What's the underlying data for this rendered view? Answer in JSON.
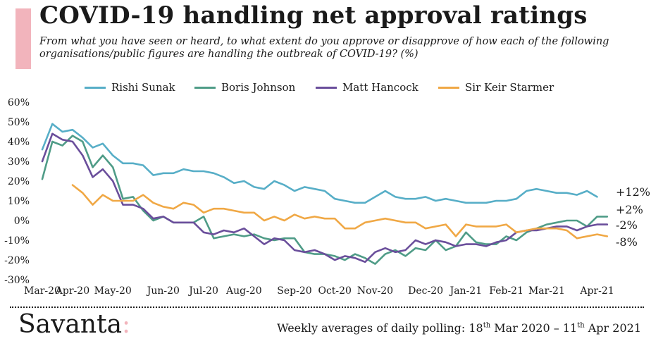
{
  "title": "COVID-19 handling net approval ratings",
  "subtitle": "From what you have seen or heard, to what extent do you approve or disapprove of how each of the following organisations/public figures are handling the outbreak of COVID-19? (%)",
  "brand": {
    "name": "Savanta",
    "colon": ":"
  },
  "footer": {
    "prefix": "Weekly averages of daily polling: 18",
    "sup1": "th",
    "middle": " Mar 2020 – 11",
    "sup2": "th",
    "suffix": " Apr 2021"
  },
  "colors": {
    "accent": "#f2b4bc"
  },
  "chart_data": {
    "type": "line",
    "ylim": [
      -30,
      60
    ],
    "y_ticks": [
      -30,
      -20,
      -10,
      0,
      10,
      20,
      30,
      40,
      50,
      60
    ],
    "y_tick_labels": [
      "-30%",
      "-20%",
      "-10%",
      "0%",
      "10%",
      "20%",
      "30%",
      "40%",
      "50%",
      "60%"
    ],
    "x_range": [
      "2020-03-18",
      "2021-04-18"
    ],
    "x_ticks": [
      "2020-03-18",
      "2020-04-08",
      "2020-05-06",
      "2020-06-10",
      "2020-07-08",
      "2020-08-05",
      "2020-09-09",
      "2020-10-07",
      "2020-11-04",
      "2020-12-09",
      "2021-01-06",
      "2021-02-03",
      "2021-03-03",
      "2021-04-07"
    ],
    "x_tick_labels": [
      "Mar-20",
      "Apr-20",
      "May-20",
      "Jun-20",
      "Jul-20",
      "Aug-20",
      "Sep-20",
      "Oct-20",
      "Nov-20",
      "Dec-20",
      "Jan-21",
      "Feb-21",
      "Mar-21",
      "Apr-21"
    ],
    "legend_position": "top",
    "grid": false,
    "series": [
      {
        "name": "Rishi Sunak",
        "color": "#57aec7",
        "end_label": "+12%",
        "points": [
          [
            "2020-03-18",
            36
          ],
          [
            "2020-03-25",
            49
          ],
          [
            "2020-04-01",
            45
          ],
          [
            "2020-04-08",
            46
          ],
          [
            "2020-04-15",
            42
          ],
          [
            "2020-04-22",
            37
          ],
          [
            "2020-04-29",
            39
          ],
          [
            "2020-05-06",
            33
          ],
          [
            "2020-05-13",
            29
          ],
          [
            "2020-05-20",
            29
          ],
          [
            "2020-05-27",
            28
          ],
          [
            "2020-06-03",
            23
          ],
          [
            "2020-06-10",
            24
          ],
          [
            "2020-06-17",
            24
          ],
          [
            "2020-06-24",
            26
          ],
          [
            "2020-07-01",
            25
          ],
          [
            "2020-07-08",
            25
          ],
          [
            "2020-07-15",
            24
          ],
          [
            "2020-07-22",
            22
          ],
          [
            "2020-07-29",
            19
          ],
          [
            "2020-08-05",
            20
          ],
          [
            "2020-08-12",
            17
          ],
          [
            "2020-08-19",
            16
          ],
          [
            "2020-08-26",
            20
          ],
          [
            "2020-09-02",
            18
          ],
          [
            "2020-09-09",
            15
          ],
          [
            "2020-09-16",
            17
          ],
          [
            "2020-09-23",
            16
          ],
          [
            "2020-09-30",
            15
          ],
          [
            "2020-10-07",
            11
          ],
          [
            "2020-10-14",
            10
          ],
          [
            "2020-10-21",
            9
          ],
          [
            "2020-10-28",
            9
          ],
          [
            "2020-11-04",
            12
          ],
          [
            "2020-11-11",
            15
          ],
          [
            "2020-11-18",
            12
          ],
          [
            "2020-11-25",
            11
          ],
          [
            "2020-12-02",
            11
          ],
          [
            "2020-12-09",
            12
          ],
          [
            "2020-12-16",
            10
          ],
          [
            "2020-12-23",
            11
          ],
          [
            "2020-12-30",
            10
          ],
          [
            "2021-01-06",
            9
          ],
          [
            "2021-01-13",
            9
          ],
          [
            "2021-01-20",
            9
          ],
          [
            "2021-01-27",
            10
          ],
          [
            "2021-02-03",
            10
          ],
          [
            "2021-02-10",
            11
          ],
          [
            "2021-02-17",
            15
          ],
          [
            "2021-02-24",
            16
          ],
          [
            "2021-03-03",
            15
          ],
          [
            "2021-03-10",
            14
          ],
          [
            "2021-03-17",
            14
          ],
          [
            "2021-03-24",
            13
          ],
          [
            "2021-03-31",
            15
          ],
          [
            "2021-04-07",
            12
          ]
        ]
      },
      {
        "name": "Boris Johnson",
        "color": "#4f9c87",
        "end_label": "+2%",
        "points": [
          [
            "2020-03-18",
            21
          ],
          [
            "2020-03-25",
            40
          ],
          [
            "2020-04-01",
            38
          ],
          [
            "2020-04-08",
            43
          ],
          [
            "2020-04-15",
            40
          ],
          [
            "2020-04-22",
            27
          ],
          [
            "2020-04-29",
            33
          ],
          [
            "2020-05-06",
            27
          ],
          [
            "2020-05-13",
            11
          ],
          [
            "2020-05-20",
            12
          ],
          [
            "2020-05-27",
            5
          ],
          [
            "2020-06-03",
            0
          ],
          [
            "2020-06-10",
            2
          ],
          [
            "2020-06-17",
            -1
          ],
          [
            "2020-06-24",
            -1
          ],
          [
            "2020-07-01",
            -1
          ],
          [
            "2020-07-08",
            2
          ],
          [
            "2020-07-15",
            -9
          ],
          [
            "2020-07-22",
            -8
          ],
          [
            "2020-07-29",
            -7
          ],
          [
            "2020-08-05",
            -8
          ],
          [
            "2020-08-12",
            -7
          ],
          [
            "2020-08-19",
            -9
          ],
          [
            "2020-08-26",
            -10
          ],
          [
            "2020-09-02",
            -9
          ],
          [
            "2020-09-09",
            -9
          ],
          [
            "2020-09-16",
            -16
          ],
          [
            "2020-09-23",
            -17
          ],
          [
            "2020-09-30",
            -17
          ],
          [
            "2020-10-07",
            -18
          ],
          [
            "2020-10-14",
            -20
          ],
          [
            "2020-10-21",
            -17
          ],
          [
            "2020-10-28",
            -19
          ],
          [
            "2020-11-04",
            -22
          ],
          [
            "2020-11-11",
            -17
          ],
          [
            "2020-11-18",
            -15
          ],
          [
            "2020-11-25",
            -18
          ],
          [
            "2020-12-02",
            -14
          ],
          [
            "2020-12-09",
            -15
          ],
          [
            "2020-12-16",
            -10
          ],
          [
            "2020-12-23",
            -15
          ],
          [
            "2020-12-30",
            -13
          ],
          [
            "2021-01-06",
            -6
          ],
          [
            "2021-01-13",
            -11
          ],
          [
            "2021-01-20",
            -12
          ],
          [
            "2021-01-27",
            -12
          ],
          [
            "2021-02-03",
            -8
          ],
          [
            "2021-02-10",
            -10
          ],
          [
            "2021-02-17",
            -6
          ],
          [
            "2021-02-24",
            -4
          ],
          [
            "2021-03-03",
            -2
          ],
          [
            "2021-03-10",
            -1
          ],
          [
            "2021-03-17",
            0
          ],
          [
            "2021-03-24",
            0
          ],
          [
            "2021-03-31",
            -3
          ],
          [
            "2021-04-07",
            2
          ],
          [
            "2021-04-14",
            2
          ]
        ]
      },
      {
        "name": "Matt Hancock",
        "color": "#6a4e9b",
        "end_label": "-2%",
        "points": [
          [
            "2020-03-18",
            30
          ],
          [
            "2020-03-25",
            44
          ],
          [
            "2020-04-01",
            41
          ],
          [
            "2020-04-08",
            40
          ],
          [
            "2020-04-15",
            33
          ],
          [
            "2020-04-22",
            22
          ],
          [
            "2020-04-29",
            26
          ],
          [
            "2020-05-06",
            20
          ],
          [
            "2020-05-13",
            8
          ],
          [
            "2020-05-20",
            8
          ],
          [
            "2020-05-27",
            6
          ],
          [
            "2020-06-03",
            1
          ],
          [
            "2020-06-10",
            2
          ],
          [
            "2020-06-17",
            -1
          ],
          [
            "2020-06-24",
            -1
          ],
          [
            "2020-07-01",
            -1
          ],
          [
            "2020-07-08",
            -6
          ],
          [
            "2020-07-15",
            -7
          ],
          [
            "2020-07-22",
            -5
          ],
          [
            "2020-07-29",
            -6
          ],
          [
            "2020-08-05",
            -4
          ],
          [
            "2020-08-12",
            -8
          ],
          [
            "2020-08-19",
            -12
          ],
          [
            "2020-08-26",
            -9
          ],
          [
            "2020-09-02",
            -10
          ],
          [
            "2020-09-09",
            -15
          ],
          [
            "2020-09-16",
            -16
          ],
          [
            "2020-09-23",
            -15
          ],
          [
            "2020-09-30",
            -17
          ],
          [
            "2020-10-07",
            -20
          ],
          [
            "2020-10-14",
            -18
          ],
          [
            "2020-10-21",
            -19
          ],
          [
            "2020-10-28",
            -21
          ],
          [
            "2020-11-04",
            -16
          ],
          [
            "2020-11-11",
            -14
          ],
          [
            "2020-11-18",
            -16
          ],
          [
            "2020-11-25",
            -15
          ],
          [
            "2020-12-02",
            -10
          ],
          [
            "2020-12-09",
            -12
          ],
          [
            "2020-12-16",
            -10
          ],
          [
            "2020-12-23",
            -11
          ],
          [
            "2020-12-30",
            -13
          ],
          [
            "2021-01-06",
            -12
          ],
          [
            "2021-01-13",
            -12
          ],
          [
            "2021-01-20",
            -13
          ],
          [
            "2021-01-27",
            -11
          ],
          [
            "2021-02-03",
            -10
          ],
          [
            "2021-02-10",
            -6
          ],
          [
            "2021-02-17",
            -5
          ],
          [
            "2021-02-24",
            -5
          ],
          [
            "2021-03-03",
            -4
          ],
          [
            "2021-03-10",
            -3
          ],
          [
            "2021-03-17",
            -3
          ],
          [
            "2021-03-24",
            -5
          ],
          [
            "2021-03-31",
            -3
          ],
          [
            "2021-04-07",
            -2
          ],
          [
            "2021-04-14",
            -2
          ]
        ]
      },
      {
        "name": "Sir Keir Starmer",
        "color": "#f0a845",
        "end_label": "-8%",
        "points": [
          [
            "2020-04-08",
            18
          ],
          [
            "2020-04-15",
            14
          ],
          [
            "2020-04-22",
            8
          ],
          [
            "2020-04-29",
            13
          ],
          [
            "2020-05-06",
            10
          ],
          [
            "2020-05-13",
            10
          ],
          [
            "2020-05-20",
            10
          ],
          [
            "2020-05-27",
            13
          ],
          [
            "2020-06-03",
            9
          ],
          [
            "2020-06-10",
            7
          ],
          [
            "2020-06-17",
            6
          ],
          [
            "2020-06-24",
            9
          ],
          [
            "2020-07-01",
            8
          ],
          [
            "2020-07-08",
            4
          ],
          [
            "2020-07-15",
            6
          ],
          [
            "2020-07-22",
            6
          ],
          [
            "2020-07-29",
            5
          ],
          [
            "2020-08-05",
            4
          ],
          [
            "2020-08-12",
            4
          ],
          [
            "2020-08-19",
            0
          ],
          [
            "2020-08-26",
            2
          ],
          [
            "2020-09-02",
            0
          ],
          [
            "2020-09-09",
            3
          ],
          [
            "2020-09-16",
            1
          ],
          [
            "2020-09-23",
            2
          ],
          [
            "2020-09-30",
            1
          ],
          [
            "2020-10-07",
            1
          ],
          [
            "2020-10-14",
            -4
          ],
          [
            "2020-10-21",
            -4
          ],
          [
            "2020-10-28",
            -1
          ],
          [
            "2020-11-04",
            0
          ],
          [
            "2020-11-11",
            1
          ],
          [
            "2020-11-18",
            0
          ],
          [
            "2020-11-25",
            -1
          ],
          [
            "2020-12-02",
            -1
          ],
          [
            "2020-12-09",
            -4
          ],
          [
            "2020-12-16",
            -3
          ],
          [
            "2020-12-23",
            -2
          ],
          [
            "2020-12-30",
            -8
          ],
          [
            "2021-01-06",
            -2
          ],
          [
            "2021-01-13",
            -3
          ],
          [
            "2021-01-20",
            -3
          ],
          [
            "2021-01-27",
            -3
          ],
          [
            "2021-02-03",
            -2
          ],
          [
            "2021-02-10",
            -6
          ],
          [
            "2021-02-17",
            -5
          ],
          [
            "2021-02-24",
            -4
          ],
          [
            "2021-03-03",
            -4
          ],
          [
            "2021-03-10",
            -4
          ],
          [
            "2021-03-17",
            -5
          ],
          [
            "2021-03-24",
            -9
          ],
          [
            "2021-03-31",
            -8
          ],
          [
            "2021-04-07",
            -7
          ],
          [
            "2021-04-14",
            -8
          ]
        ]
      }
    ]
  }
}
